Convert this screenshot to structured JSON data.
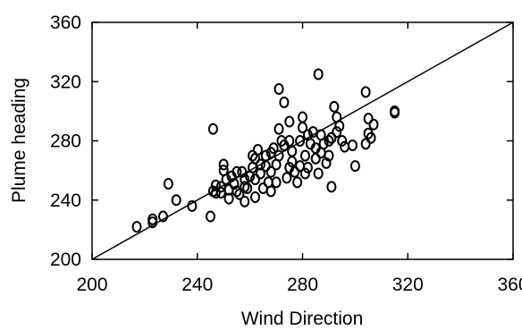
{
  "chart_data": {
    "type": "scatter",
    "title": "",
    "xlabel": "Wind Direction",
    "ylabel": "Plume heading",
    "xlim": [
      200,
      360
    ],
    "ylim": [
      200,
      360
    ],
    "xticks": [
      200,
      240,
      280,
      320,
      360
    ],
    "yticks": [
      200,
      240,
      280,
      320,
      360
    ],
    "grid": false,
    "legend": "none",
    "reference_line": {
      "from": [
        200,
        200
      ],
      "to": [
        360,
        360
      ]
    },
    "marker": "open-ellipse",
    "colors": {
      "marker_stroke": "#000000",
      "axis": "#000000",
      "background": "#ffffff"
    },
    "points": [
      [
        217,
        222
      ],
      [
        223,
        225
      ],
      [
        223,
        227
      ],
      [
        227,
        229
      ],
      [
        229,
        251
      ],
      [
        232,
        240
      ],
      [
        238,
        236
      ],
      [
        245,
        229
      ],
      [
        246,
        288
      ],
      [
        246,
        246
      ],
      [
        247,
        250
      ],
      [
        247,
        245
      ],
      [
        249,
        249
      ],
      [
        249,
        245
      ],
      [
        250,
        264
      ],
      [
        250,
        260
      ],
      [
        251,
        254
      ],
      [
        252,
        247
      ],
      [
        252,
        241
      ],
      [
        253,
        256
      ],
      [
        254,
        251
      ],
      [
        255,
        259
      ],
      [
        255,
        246
      ],
      [
        256,
        244
      ],
      [
        257,
        259
      ],
      [
        258,
        254
      ],
      [
        258,
        239
      ],
      [
        259,
        248
      ],
      [
        260,
        256
      ],
      [
        261,
        262
      ],
      [
        261,
        270
      ],
      [
        262,
        268
      ],
      [
        262,
        254
      ],
      [
        263,
        274
      ],
      [
        264,
        264
      ],
      [
        264,
        258
      ],
      [
        265,
        248
      ],
      [
        266,
        270
      ],
      [
        266,
        263
      ],
      [
        267,
        252
      ],
      [
        268,
        272
      ],
      [
        268,
        259
      ],
      [
        269,
        275
      ],
      [
        270,
        264
      ],
      [
        270,
        252
      ],
      [
        271,
        315
      ],
      [
        271,
        288
      ],
      [
        271,
        270
      ],
      [
        272,
        280
      ],
      [
        273,
        306
      ],
      [
        273,
        277
      ],
      [
        274,
        255
      ],
      [
        275,
        293
      ],
      [
        275,
        280
      ],
      [
        276,
        266
      ],
      [
        276,
        273
      ],
      [
        277,
        259
      ],
      [
        278,
        252
      ],
      [
        279,
        280
      ],
      [
        279,
        263
      ],
      [
        280,
        296
      ],
      [
        280,
        289
      ],
      [
        281,
        270
      ],
      [
        281,
        258
      ],
      [
        282,
        284
      ],
      [
        282,
        262
      ],
      [
        283,
        278
      ],
      [
        284,
        286
      ],
      [
        285,
        268
      ],
      [
        286,
        325
      ],
      [
        286,
        258
      ],
      [
        287,
        284
      ],
      [
        287,
        272
      ],
      [
        288,
        278
      ],
      [
        289,
        265
      ],
      [
        290,
        280
      ],
      [
        291,
        282
      ],
      [
        291,
        249
      ],
      [
        292,
        303
      ],
      [
        293,
        296
      ],
      [
        293,
        286
      ],
      [
        294,
        290
      ],
      [
        295,
        280
      ],
      [
        296,
        276
      ],
      [
        299,
        277
      ],
      [
        300,
        263
      ],
      [
        304,
        313
      ],
      [
        304,
        278
      ],
      [
        305,
        295
      ],
      [
        305,
        285
      ],
      [
        306,
        282
      ],
      [
        307,
        291
      ],
      [
        315,
        300
      ],
      [
        315,
        299
      ],
      [
        285,
        275
      ],
      [
        290,
        270
      ],
      [
        268,
        246
      ],
      [
        258,
        249
      ],
      [
        262,
        242
      ],
      [
        275,
        262
      ]
    ]
  }
}
